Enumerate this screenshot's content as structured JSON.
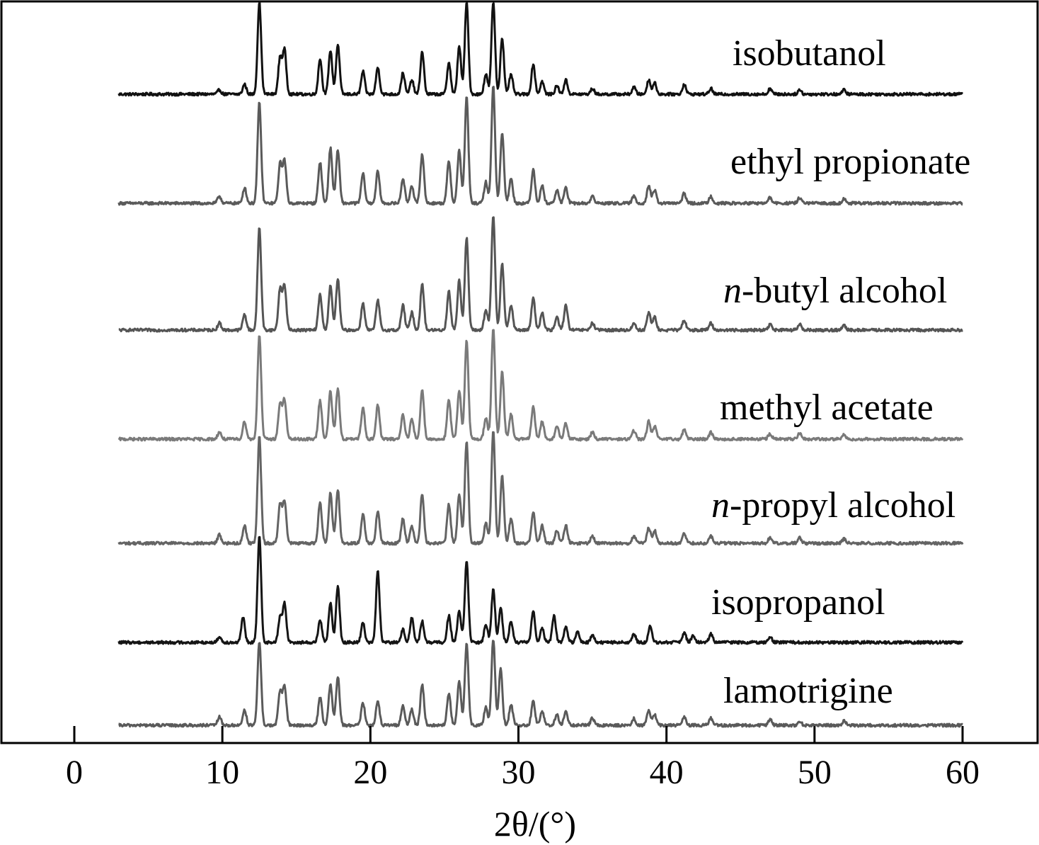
{
  "chart_data": {
    "type": "line",
    "xlabel": "2θ/(°)",
    "ylabel": "",
    "xlim": [
      -5,
      65
    ],
    "xticks": [
      0,
      10,
      20,
      30,
      40,
      50,
      60
    ],
    "x_range": [
      3,
      60
    ],
    "grid": false,
    "legend": "none",
    "series": [
      {
        "name": "isobutanol",
        "italic_prefix": "",
        "label_rest": "isobutanol",
        "color": "#111111",
        "peak_scale": 1.0,
        "peaks": [
          [
            9.8,
            6
          ],
          [
            11.5,
            14
          ],
          [
            12.5,
            130
          ],
          [
            13.9,
            52
          ],
          [
            14.2,
            62
          ],
          [
            16.6,
            50
          ],
          [
            17.3,
            62
          ],
          [
            17.8,
            70
          ],
          [
            19.5,
            32
          ],
          [
            20.5,
            38
          ],
          [
            22.2,
            30
          ],
          [
            22.8,
            20
          ],
          [
            23.5,
            60
          ],
          [
            25.3,
            45
          ],
          [
            26.0,
            68
          ],
          [
            26.5,
            130
          ],
          [
            27.8,
            28
          ],
          [
            28.3,
            130
          ],
          [
            28.9,
            80
          ],
          [
            29.5,
            28
          ],
          [
            31.0,
            42
          ],
          [
            31.6,
            18
          ],
          [
            32.6,
            12
          ],
          [
            33.2,
            20
          ],
          [
            35.0,
            8
          ],
          [
            37.8,
            10
          ],
          [
            38.8,
            20
          ],
          [
            39.2,
            16
          ],
          [
            41.2,
            14
          ],
          [
            43.0,
            8
          ],
          [
            47.0,
            8
          ],
          [
            49.0,
            6
          ],
          [
            52.0,
            6
          ]
        ]
      },
      {
        "name": "ethyl propionate",
        "italic_prefix": "",
        "label_rest": "ethyl propionate",
        "color": "#5a5a5a",
        "peak_scale": 1.0,
        "peaks": [
          [
            9.8,
            10
          ],
          [
            11.5,
            22
          ],
          [
            12.5,
            142
          ],
          [
            13.9,
            55
          ],
          [
            14.2,
            60
          ],
          [
            16.6,
            58
          ],
          [
            17.3,
            78
          ],
          [
            17.8,
            75
          ],
          [
            19.5,
            42
          ],
          [
            20.5,
            45
          ],
          [
            22.2,
            35
          ],
          [
            22.8,
            25
          ],
          [
            23.5,
            70
          ],
          [
            25.3,
            60
          ],
          [
            26.0,
            75
          ],
          [
            26.5,
            150
          ],
          [
            27.8,
            30
          ],
          [
            28.3,
            165
          ],
          [
            28.9,
            100
          ],
          [
            29.5,
            35
          ],
          [
            31.0,
            48
          ],
          [
            31.6,
            25
          ],
          [
            32.6,
            18
          ],
          [
            33.2,
            22
          ],
          [
            35.0,
            10
          ],
          [
            37.8,
            10
          ],
          [
            38.8,
            25
          ],
          [
            39.2,
            18
          ],
          [
            41.2,
            14
          ],
          [
            43.0,
            10
          ],
          [
            47.0,
            8
          ],
          [
            49.0,
            8
          ],
          [
            52.0,
            6
          ]
        ]
      },
      {
        "name": "n-butyl alcohol",
        "italic_prefix": "n",
        "label_rest": "-butyl alcohol",
        "color": "#555555",
        "peak_scale": 1.0,
        "peaks": [
          [
            9.8,
            10
          ],
          [
            11.5,
            22
          ],
          [
            12.5,
            145
          ],
          [
            13.9,
            58
          ],
          [
            14.2,
            62
          ],
          [
            16.6,
            50
          ],
          [
            17.3,
            62
          ],
          [
            17.8,
            72
          ],
          [
            19.5,
            38
          ],
          [
            20.5,
            42
          ],
          [
            22.2,
            35
          ],
          [
            22.8,
            25
          ],
          [
            23.5,
            65
          ],
          [
            25.3,
            55
          ],
          [
            26.0,
            70
          ],
          [
            26.5,
            130
          ],
          [
            27.8,
            28
          ],
          [
            28.3,
            162
          ],
          [
            28.9,
            95
          ],
          [
            29.5,
            35
          ],
          [
            31.0,
            45
          ],
          [
            31.6,
            25
          ],
          [
            32.6,
            18
          ],
          [
            33.2,
            35
          ],
          [
            35.0,
            10
          ],
          [
            37.8,
            10
          ],
          [
            38.8,
            25
          ],
          [
            39.2,
            18
          ],
          [
            41.2,
            14
          ],
          [
            43.0,
            10
          ],
          [
            47.0,
            8
          ],
          [
            49.0,
            8
          ],
          [
            52.0,
            6
          ]
        ]
      },
      {
        "name": "methyl acetate",
        "italic_prefix": "",
        "label_rest": "methyl acetate",
        "color": "#7a7a7a",
        "peak_scale": 1.0,
        "peaks": [
          [
            9.8,
            10
          ],
          [
            11.5,
            25
          ],
          [
            12.5,
            148
          ],
          [
            13.9,
            50
          ],
          [
            14.2,
            55
          ],
          [
            16.6,
            55
          ],
          [
            17.3,
            68
          ],
          [
            17.8,
            72
          ],
          [
            19.5,
            45
          ],
          [
            20.5,
            48
          ],
          [
            22.2,
            35
          ],
          [
            22.8,
            28
          ],
          [
            23.5,
            70
          ],
          [
            25.3,
            55
          ],
          [
            26.0,
            70
          ],
          [
            26.5,
            140
          ],
          [
            27.8,
            30
          ],
          [
            28.3,
            155
          ],
          [
            28.9,
            95
          ],
          [
            29.5,
            35
          ],
          [
            31.0,
            45
          ],
          [
            31.6,
            25
          ],
          [
            32.6,
            18
          ],
          [
            33.2,
            22
          ],
          [
            35.0,
            10
          ],
          [
            37.8,
            12
          ],
          [
            38.8,
            25
          ],
          [
            39.2,
            18
          ],
          [
            41.2,
            14
          ],
          [
            43.0,
            10
          ],
          [
            47.0,
            8
          ],
          [
            49.0,
            8
          ],
          [
            52.0,
            6
          ]
        ]
      },
      {
        "name": "n-propyl alcohol",
        "italic_prefix": "n",
        "label_rest": "-propyl alcohol",
        "color": "#646464",
        "peak_scale": 1.0,
        "peaks": [
          [
            9.8,
            12
          ],
          [
            11.5,
            25
          ],
          [
            12.5,
            150
          ],
          [
            13.9,
            55
          ],
          [
            14.2,
            60
          ],
          [
            16.6,
            58
          ],
          [
            17.3,
            72
          ],
          [
            17.8,
            75
          ],
          [
            19.5,
            42
          ],
          [
            20.5,
            45
          ],
          [
            22.2,
            35
          ],
          [
            22.8,
            25
          ],
          [
            23.5,
            70
          ],
          [
            25.3,
            55
          ],
          [
            26.0,
            70
          ],
          [
            26.5,
            145
          ],
          [
            27.8,
            28
          ],
          [
            28.3,
            160
          ],
          [
            28.9,
            95
          ],
          [
            29.5,
            35
          ],
          [
            31.0,
            45
          ],
          [
            31.6,
            25
          ],
          [
            32.6,
            18
          ],
          [
            33.2,
            25
          ],
          [
            35.0,
            10
          ],
          [
            37.8,
            10
          ],
          [
            38.8,
            22
          ],
          [
            39.2,
            18
          ],
          [
            41.2,
            14
          ],
          [
            43.0,
            10
          ],
          [
            47.0,
            8
          ],
          [
            49.0,
            8
          ],
          [
            52.0,
            6
          ]
        ]
      },
      {
        "name": "isopropanol",
        "italic_prefix": "",
        "label_rest": "isopropanol",
        "color": "#151515",
        "peak_scale": 1.0,
        "peaks": [
          [
            9.8,
            8
          ],
          [
            11.4,
            35
          ],
          [
            12.5,
            150
          ],
          [
            13.9,
            35
          ],
          [
            14.2,
            55
          ],
          [
            16.6,
            32
          ],
          [
            17.3,
            55
          ],
          [
            17.8,
            80
          ],
          [
            19.5,
            28
          ],
          [
            20.5,
            100
          ],
          [
            22.2,
            18
          ],
          [
            22.8,
            35
          ],
          [
            23.5,
            30
          ],
          [
            25.3,
            38
          ],
          [
            26.0,
            45
          ],
          [
            26.5,
            115
          ],
          [
            27.8,
            25
          ],
          [
            28.3,
            75
          ],
          [
            28.8,
            50
          ],
          [
            29.5,
            30
          ],
          [
            31.0,
            45
          ],
          [
            31.6,
            20
          ],
          [
            32.4,
            38
          ],
          [
            33.2,
            22
          ],
          [
            34.0,
            15
          ],
          [
            35.0,
            10
          ],
          [
            37.8,
            12
          ],
          [
            38.9,
            22
          ],
          [
            41.2,
            14
          ],
          [
            41.8,
            10
          ],
          [
            43.0,
            12
          ],
          [
            47.0,
            8
          ]
        ]
      },
      {
        "name": "lamotrigine",
        "italic_prefix": "",
        "label_rest": "lamotrigine",
        "color": "#5a5a5a",
        "peak_scale": 1.0,
        "peaks": [
          [
            9.8,
            12
          ],
          [
            11.5,
            22
          ],
          [
            12.5,
            118
          ],
          [
            13.9,
            48
          ],
          [
            14.2,
            55
          ],
          [
            16.6,
            40
          ],
          [
            17.3,
            58
          ],
          [
            17.8,
            68
          ],
          [
            19.5,
            32
          ],
          [
            20.5,
            35
          ],
          [
            22.2,
            28
          ],
          [
            22.8,
            22
          ],
          [
            23.5,
            58
          ],
          [
            25.3,
            45
          ],
          [
            26.0,
            62
          ],
          [
            26.5,
            115
          ],
          [
            27.8,
            25
          ],
          [
            28.3,
            122
          ],
          [
            28.8,
            80
          ],
          [
            29.5,
            30
          ],
          [
            31.0,
            35
          ],
          [
            31.6,
            20
          ],
          [
            32.6,
            15
          ],
          [
            33.2,
            20
          ],
          [
            35.0,
            10
          ],
          [
            37.8,
            10
          ],
          [
            38.8,
            20
          ],
          [
            39.2,
            15
          ],
          [
            41.2,
            12
          ],
          [
            43.0,
            10
          ],
          [
            47.0,
            8
          ],
          [
            49.0,
            6
          ],
          [
            52.0,
            6
          ]
        ]
      }
    ]
  }
}
